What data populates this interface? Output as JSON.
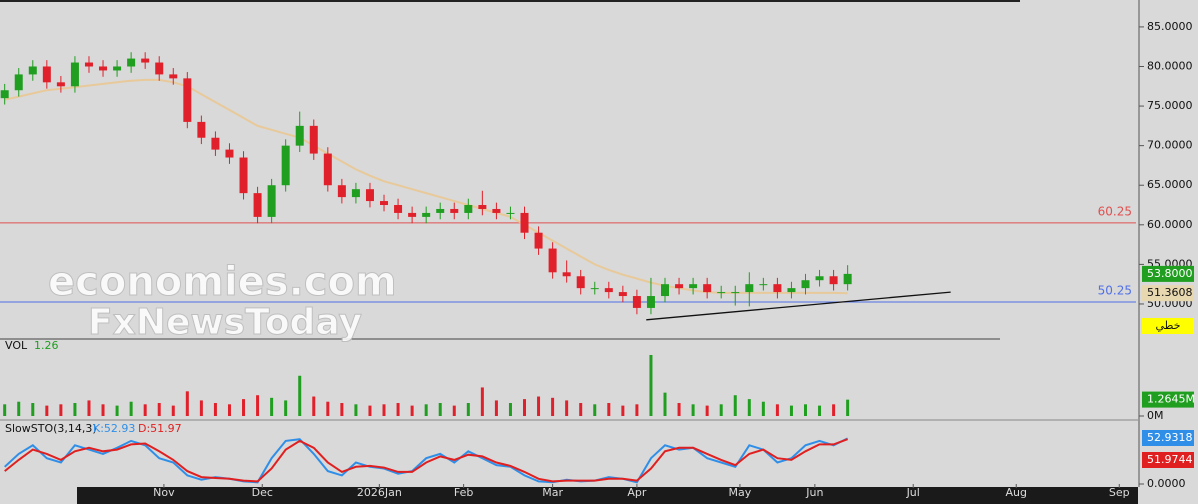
{
  "chart_data": {
    "type": "candlestick",
    "x": [
      0,
      3,
      6,
      9,
      12,
      15,
      18,
      21,
      24,
      27,
      30,
      33,
      36,
      39,
      42,
      45,
      48,
      51,
      54,
      57,
      60,
      63,
      66,
      69,
      72,
      75,
      78,
      81,
      84,
      87,
      90,
      93,
      96,
      99,
      102,
      105,
      108,
      111,
      114,
      117,
      120,
      123,
      126,
      129,
      132,
      135,
      138,
      141,
      144,
      147,
      150,
      153,
      156,
      159,
      162,
      165,
      168,
      171,
      174,
      177,
      180
    ],
    "open": [
      76,
      77,
      79,
      80,
      78,
      77.5,
      80.5,
      80,
      79.5,
      80,
      81,
      80.5,
      79,
      78.5,
      73,
      71,
      69.5,
      68.5,
      64,
      61,
      65,
      70,
      72.5,
      69,
      65,
      63.5,
      64.5,
      63,
      62.5,
      61.5,
      61,
      61.5,
      62,
      61.5,
      62.5,
      62,
      61.5,
      61.5,
      59,
      57,
      54,
      53.5,
      52,
      52,
      51.5,
      51,
      49.5,
      51,
      52.5,
      52,
      52.5,
      51.5,
      51.5,
      51.5,
      52.5,
      52.5,
      51.5,
      52,
      53,
      53.5,
      52.5
    ],
    "high": [
      77.8,
      79.8,
      80.8,
      80.8,
      78.8,
      81.3,
      81.3,
      80.8,
      80.8,
      81.8,
      81.8,
      81.3,
      79.8,
      79.3,
      73.8,
      71.8,
      70.3,
      69.3,
      64.8,
      65.8,
      70.8,
      74.3,
      73.3,
      69.8,
      65.8,
      65.3,
      65.3,
      63.8,
      63.3,
      62.3,
      62.3,
      62.8,
      62.8,
      63.3,
      64.3,
      62.8,
      62.3,
      62.3,
      59.8,
      57.8,
      55.5,
      54.3,
      52.8,
      52.8,
      52.3,
      51.8,
      53.3,
      53.3,
      53.3,
      53.3,
      53.3,
      52.3,
      52.3,
      54,
      53.3,
      53.3,
      52.8,
      53.8,
      54.3,
      54.3,
      54.9
    ],
    "low": [
      75.2,
      76.2,
      78.2,
      77.2,
      76.7,
      76.7,
      79.2,
      78.7,
      78.7,
      79.2,
      79.7,
      78.2,
      77.7,
      72.2,
      70.2,
      68.7,
      67.7,
      63.2,
      60.2,
      60.2,
      64.2,
      69.2,
      68.2,
      64.2,
      62.7,
      62.7,
      62.2,
      61.7,
      60.7,
      60.2,
      60.2,
      60.7,
      60.7,
      60.7,
      61.2,
      60.7,
      60.7,
      58.2,
      56.2,
      53.2,
      52.7,
      51.2,
      51.2,
      50.7,
      50.2,
      48.7,
      48.7,
      50.2,
      51.2,
      51.2,
      50.7,
      50.7,
      49.8,
      49.7,
      51.7,
      50.7,
      50.7,
      51.2,
      52.2,
      51.7,
      51.7
    ],
    "close": [
      77,
      79,
      80,
      78,
      77.5,
      80.5,
      80,
      79.5,
      80,
      81,
      80.5,
      79,
      78.5,
      73,
      71,
      69.5,
      68.5,
      64,
      61,
      65,
      70,
      72.5,
      69,
      65,
      63.5,
      64.5,
      63,
      62.5,
      61.5,
      61,
      61.5,
      62,
      61.5,
      62.5,
      62,
      61.5,
      61.5,
      59,
      57,
      54,
      53.5,
      52,
      52,
      51.5,
      51,
      49.5,
      51,
      52.5,
      52,
      52.5,
      51.5,
      51.5,
      51.5,
      52.5,
      52.5,
      51.5,
      52,
      53,
      53.5,
      52.5,
      53.8
    ],
    "up_color": "#1f9e1f",
    "down_color": "#e0202a",
    "ma": {
      "color": "#e8c99a",
      "values": [
        75.8,
        76.2,
        76.6,
        77,
        77.2,
        77.4,
        77.6,
        77.8,
        78,
        78.2,
        78.3,
        78.3,
        78,
        77.5,
        76.5,
        75.5,
        74.5,
        73.5,
        72.5,
        72,
        71.5,
        71,
        70,
        69,
        68,
        67,
        66.2,
        65.5,
        65,
        64.5,
        64,
        63.5,
        63,
        62.5,
        62,
        61.5,
        61,
        60,
        59,
        58,
        57,
        56,
        55,
        54.3,
        53.7,
        53.2,
        52.7,
        52.3,
        52,
        51.7,
        51.5,
        51.4,
        51.4,
        51.4,
        51.4,
        51.4,
        51.4,
        51.4,
        51.4,
        51.4,
        51.36
      ]
    },
    "xlim": [
      -1,
      242
    ],
    "xticks": [
      {
        "value": 34,
        "label": "Nov"
      },
      {
        "value": 55,
        "label": "Dec"
      },
      {
        "value": 80,
        "label": "2026Jan"
      },
      {
        "value": 98,
        "label": "Feb"
      },
      {
        "value": 117,
        "label": "Mar"
      },
      {
        "value": 135,
        "label": "Apr"
      },
      {
        "value": 157,
        "label": "May"
      },
      {
        "value": 173,
        "label": "Jun"
      },
      {
        "value": 194,
        "label": "Jul"
      },
      {
        "value": 216,
        "label": "Aug"
      },
      {
        "value": 238,
        "label": "Sep"
      }
    ],
    "ylim": [
      45.7,
      88.4
    ],
    "yticks": [
      {
        "value": 85,
        "label": "85.0000"
      },
      {
        "value": 80,
        "label": "80.0000"
      },
      {
        "value": 75,
        "label": "75.0000"
      },
      {
        "value": 70,
        "label": "70.0000"
      },
      {
        "value": 65,
        "label": "65.0000"
      },
      {
        "value": 60,
        "label": "60.0000"
      },
      {
        "value": 55,
        "label": "55.0000"
      },
      {
        "value": 50,
        "label": "50.0000"
      }
    ],
    "hlines": [
      {
        "value": 60.25,
        "label": "60.25",
        "color": "#e05050"
      },
      {
        "value": 50.25,
        "label": "50.25",
        "color": "#5070e8"
      }
    ],
    "trendline": {
      "x": [
        137,
        202
      ],
      "y": [
        48,
        51.5
      ],
      "color": "#111111"
    },
    "last_close": {
      "value": 53.8,
      "label": "53.8000"
    },
    "ma_last": 51.3608,
    "mode_label": "خطي",
    "watermark": [
      "economies.com",
      "FxNewsToday"
    ],
    "volume": {
      "title": "VOL",
      "legend_value": 1.26,
      "ylim": [
        0,
        5.7
      ],
      "yticks": [
        {
          "value": 1.2645,
          "label": "1.2645M"
        },
        {
          "value": 0,
          "label": "0M"
        }
      ],
      "values": [
        0.9,
        1.1,
        1.0,
        0.8,
        0.9,
        1.0,
        1.2,
        0.9,
        0.8,
        1.1,
        0.9,
        1.0,
        0.8,
        1.9,
        1.2,
        1.0,
        0.9,
        1.3,
        1.6,
        1.4,
        1.2,
        3.1,
        1.5,
        1.1,
        1.0,
        0.9,
        0.8,
        0.9,
        1.0,
        0.8,
        0.9,
        1.0,
        0.8,
        1.0,
        2.2,
        1.2,
        1.0,
        1.3,
        1.5,
        1.4,
        1.2,
        1.0,
        0.9,
        1.0,
        0.8,
        0.9,
        4.7,
        1.8,
        1.0,
        0.9,
        0.8,
        0.9,
        1.6,
        1.3,
        1.1,
        0.9,
        0.8,
        0.9,
        0.8,
        0.9,
        1.26
      ]
    },
    "stochastic": {
      "title": "SlowSTO(3,14,3)",
      "ylim": [
        0,
        72
      ],
      "yticks": [
        {
          "value": 0,
          "label": "0.0000"
        }
      ],
      "k": {
        "name": "K:52.93",
        "color": "#2f8fe8",
        "last": 52.9318,
        "values": [
          20,
          35,
          45,
          30,
          25,
          45,
          40,
          35,
          42,
          50,
          45,
          30,
          25,
          10,
          5,
          8,
          6,
          3,
          2,
          30,
          50,
          52,
          35,
          15,
          10,
          25,
          20,
          18,
          12,
          15,
          30,
          35,
          25,
          38,
          30,
          22,
          20,
          10,
          3,
          2,
          5,
          3,
          4,
          8,
          6,
          2,
          30,
          45,
          40,
          42,
          30,
          25,
          20,
          45,
          40,
          25,
          30,
          45,
          50,
          45,
          52.93
        ]
      },
      "d": {
        "name": "D:51.97",
        "color": "#e02020",
        "last": 51.9744,
        "values": [
          15,
          28,
          40,
          35,
          28,
          38,
          42,
          38,
          40,
          46,
          47,
          38,
          28,
          15,
          8,
          7,
          6,
          4,
          3,
          18,
          40,
          50,
          42,
          25,
          14,
          20,
          21,
          19,
          14,
          14,
          25,
          32,
          28,
          34,
          32,
          25,
          21,
          14,
          6,
          3,
          4,
          4,
          4,
          6,
          6,
          4,
          18,
          38,
          42,
          42,
          35,
          28,
          22,
          35,
          40,
          30,
          28,
          38,
          46,
          46,
          51.97
        ]
      }
    }
  }
}
